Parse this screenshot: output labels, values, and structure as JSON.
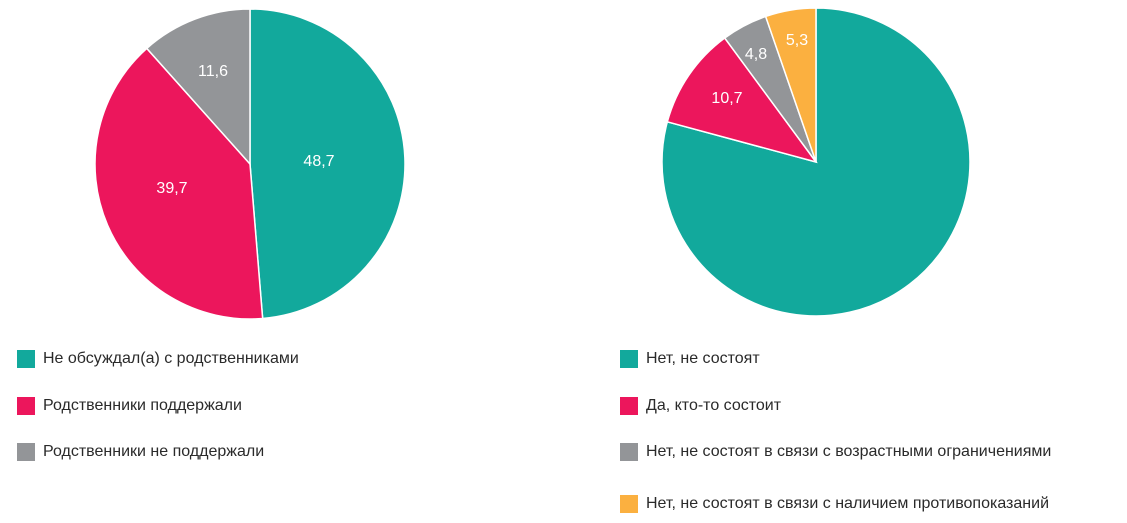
{
  "colors": {
    "teal": "#12A99C",
    "crimson": "#EC165C",
    "gray": "#939598",
    "orange": "#FBB040"
  },
  "chart_data": [
    {
      "type": "pie",
      "start": "12 o'clock, clockwise",
      "slices": [
        {
          "label": "Не обсуждал(а) с родственниками",
          "value": 48.7,
          "value_text": "48,7",
          "color": "#12A99C"
        },
        {
          "label": "Родственники поддержали",
          "value": 39.7,
          "value_text": "39,7",
          "color": "#EC165C"
        },
        {
          "label": "Родственники не поддержали",
          "value": 11.6,
          "value_text": "11,6",
          "color": "#939598"
        }
      ],
      "legend": [
        "Не обсуждал(а) с родственниками",
        "Родственники поддержали",
        "Родственники не поддержали"
      ]
    },
    {
      "type": "pie",
      "start": "12 o'clock, clockwise",
      "slices": [
        {
          "label": "Нет, не состоят",
          "value": 79.2,
          "value_text": "",
          "color": "#12A99C"
        },
        {
          "label": "Да, кто-то состоит",
          "value": 10.7,
          "value_text": "10,7",
          "color": "#EC165C"
        },
        {
          "label": "Нет, не состоят в связи с возрастными ограничениями",
          "value": 4.8,
          "value_text": "4,8",
          "color": "#939598"
        },
        {
          "label": "Нет, не состоят в связи с наличием противопоказаний",
          "value": 5.3,
          "value_text": "5,3",
          "color": "#FBB040"
        }
      ],
      "legend": [
        "Нет, не состоят",
        "Да, кто-то состоит",
        "Нет, не состоят в связи с возрастными ограничениями",
        "Нет, не состоят в связи с наличием противопоказаний"
      ]
    }
  ]
}
